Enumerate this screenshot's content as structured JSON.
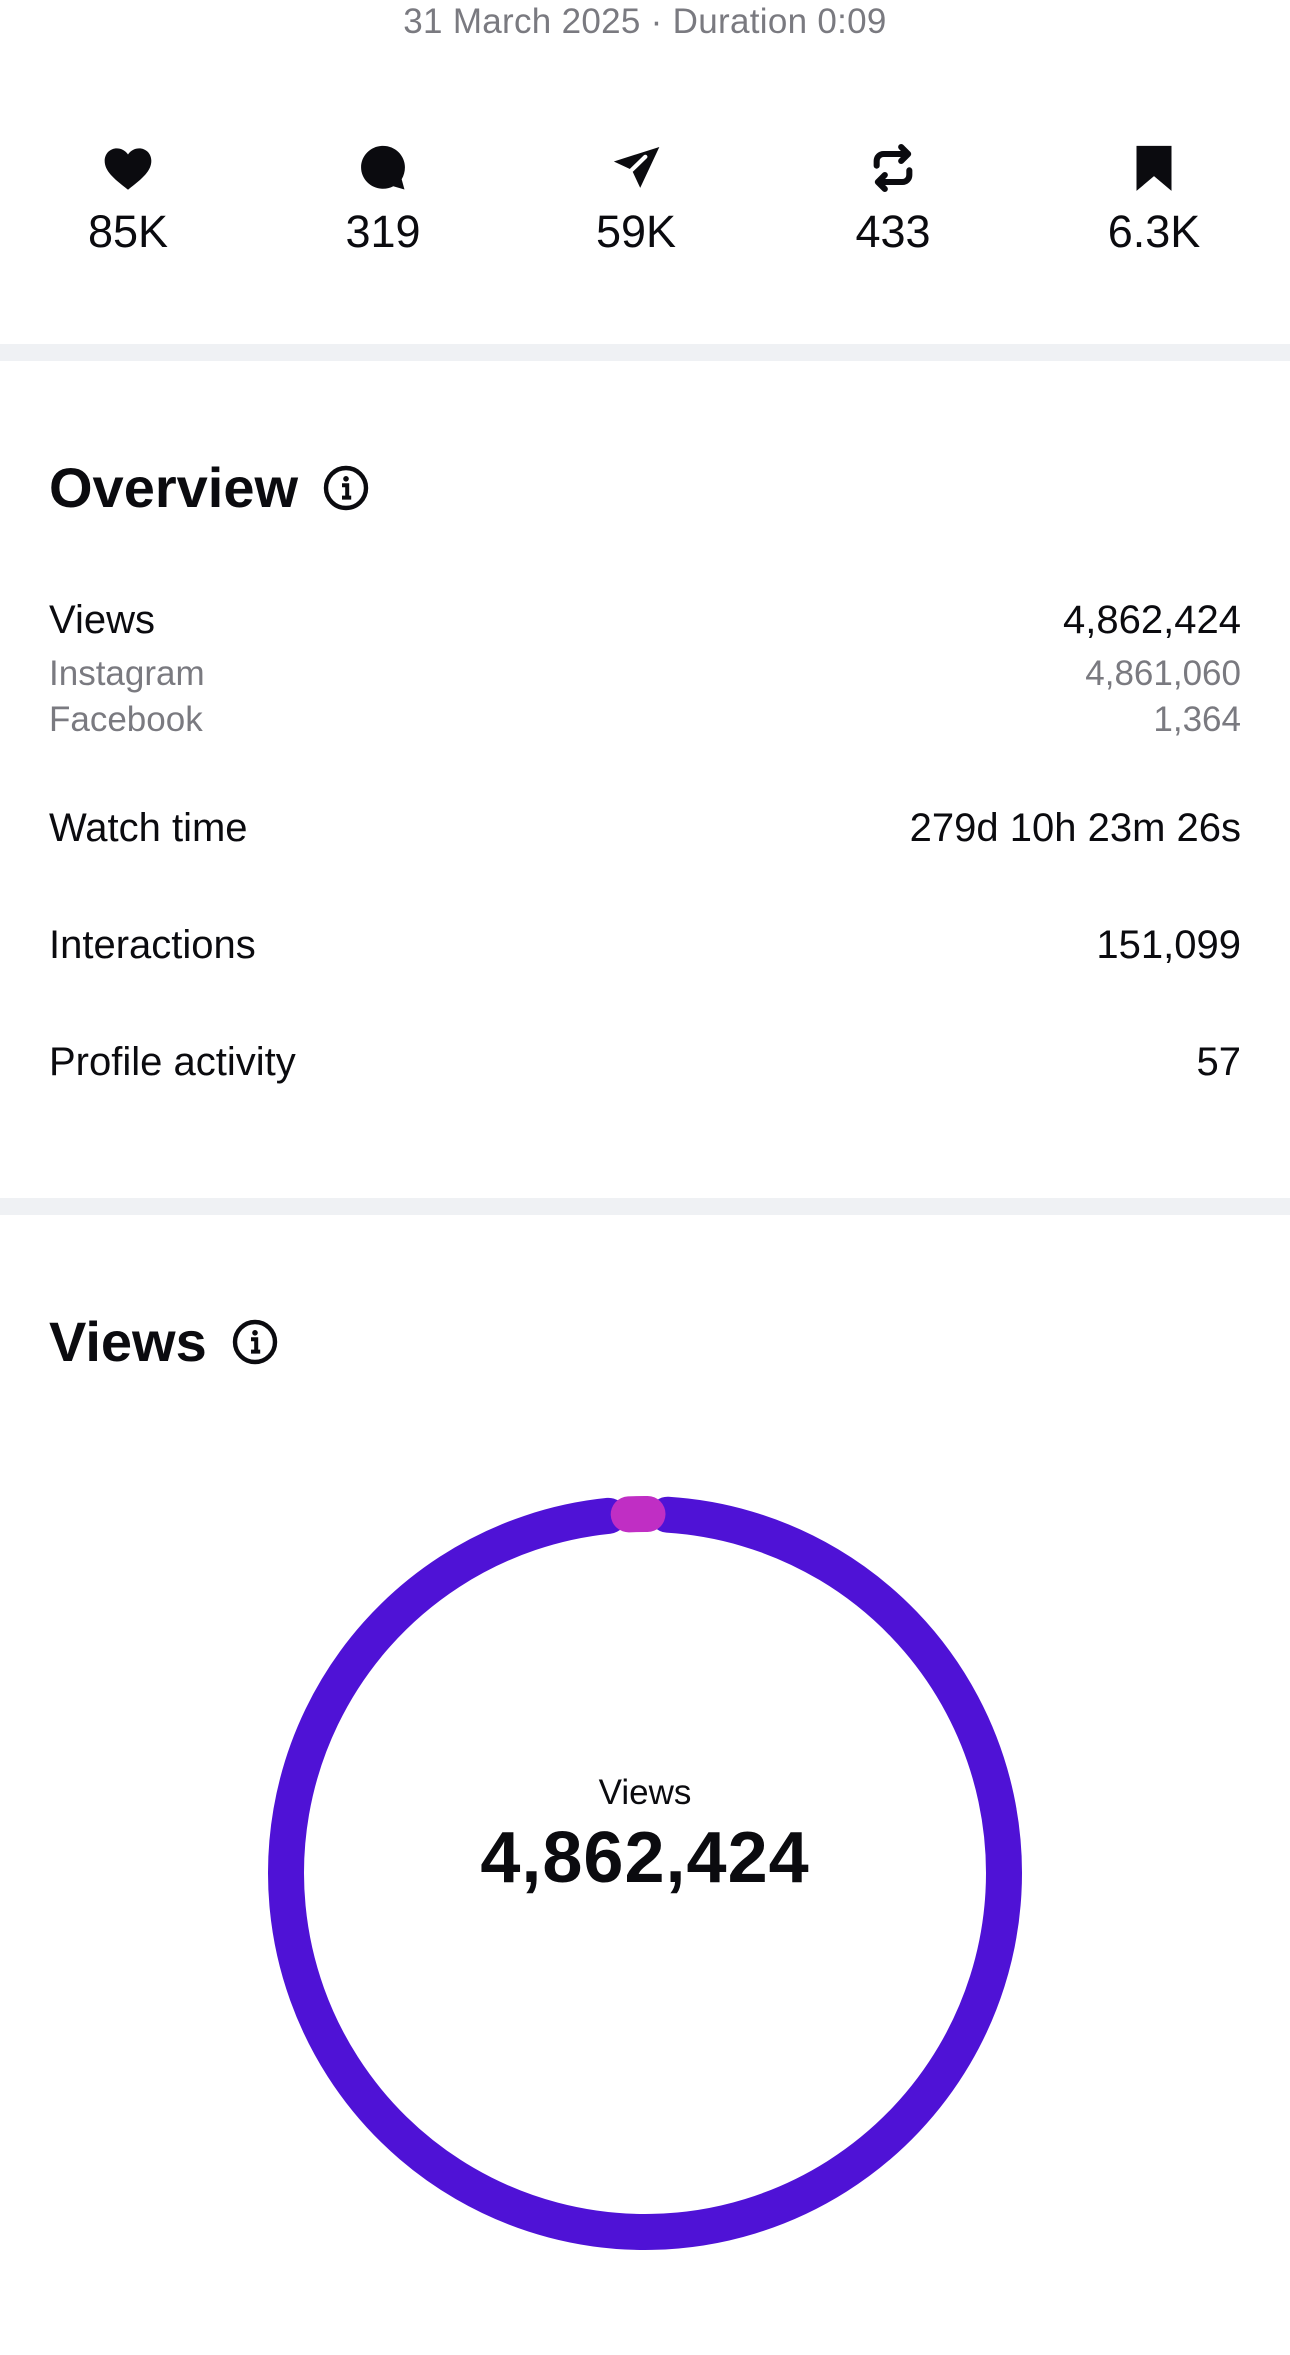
{
  "header": {
    "date_line": "31 March 2025 · Duration 0:09"
  },
  "stats": [
    {
      "icon": "heart-icon",
      "value": "85K"
    },
    {
      "icon": "comment-icon",
      "value": "319"
    },
    {
      "icon": "share-icon",
      "value": "59K"
    },
    {
      "icon": "repost-icon",
      "value": "433"
    },
    {
      "icon": "bookmark-icon",
      "value": "6.3K"
    }
  ],
  "overview": {
    "title": "Overview",
    "views": {
      "label": "Views",
      "value": "4,862,424"
    },
    "instagram": {
      "label": "Instagram",
      "value": "4,861,060"
    },
    "facebook": {
      "label": "Facebook",
      "value": "1,364"
    },
    "watch_time": {
      "label": "Watch time",
      "value": "279d 10h 23m 26s"
    },
    "interactions": {
      "label": "Interactions",
      "value": "151,099"
    },
    "profile_activity": {
      "label": "Profile activity",
      "value": "57"
    }
  },
  "views_section": {
    "title": "Views",
    "center_label": "Views",
    "center_value": "4,862,424"
  },
  "chart_data": {
    "type": "pie",
    "variant": "donut",
    "series": [
      {
        "name": "Instagram",
        "value": 4861060,
        "color": "#4f12d6"
      },
      {
        "name": "Facebook",
        "value": 1364,
        "color": "#c02ec4"
      }
    ],
    "total": 4862424
  },
  "colors": {
    "accent_primary": "#4f12d6",
    "accent_secondary": "#c02ec4",
    "divider": "#eff1f4",
    "muted_text": "#7a7a80"
  }
}
